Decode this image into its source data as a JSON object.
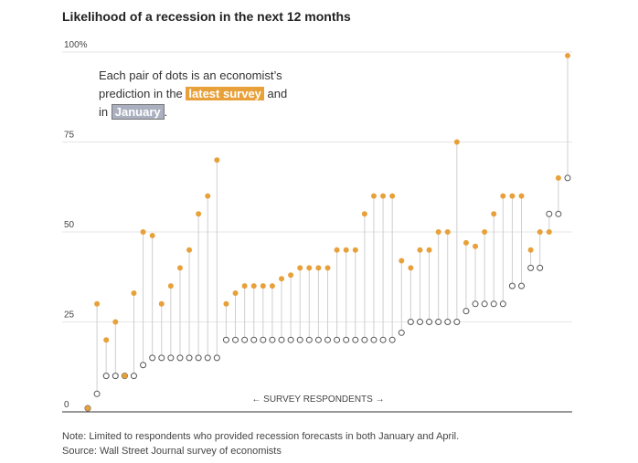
{
  "title": "Likelihood of a recession in the next 12 months",
  "annotation": {
    "line1": "Each pair of dots is an economist’s",
    "line2_prefix": "prediction in the",
    "latest_label": "latest survey",
    "line2_suffix": "and",
    "line3_prefix": "in",
    "january_label": "January",
    "line3_suffix": "."
  },
  "footer": {
    "note": "Note: Limited to respondents who provided recession forecasts in both January and April.",
    "source": "Source: Wall Street Journal survey of economists"
  },
  "colors": {
    "latest": "#e8a13a",
    "january": "#ffffff",
    "january_stroke": "#555555",
    "stem": "#cfcfcf",
    "grid": "#dddddd"
  },
  "chart_data": {
    "type": "scatter",
    "title": "Likelihood of a recession in the next 12 months",
    "xlabel": "← SURVEY RESPONDENTS →",
    "ylabel": "",
    "ylim": [
      0,
      100
    ],
    "y_ticks": [
      0,
      25,
      50,
      75,
      100
    ],
    "y_tick_labels": [
      "0",
      "25",
      "50",
      "75",
      "100%"
    ],
    "series": [
      {
        "name": "latest survey",
        "values": [
          1,
          30,
          20,
          25,
          10,
          33,
          50,
          49,
          30,
          35,
          40,
          45,
          55,
          60,
          70,
          30,
          33,
          35,
          35,
          35,
          35,
          37,
          38,
          40,
          40,
          40,
          40,
          45,
          45,
          45,
          55,
          60,
          60,
          60,
          42,
          40,
          45,
          45,
          50,
          50,
          75,
          47,
          46,
          50,
          55,
          60,
          60,
          60,
          45,
          50,
          50,
          65,
          99
        ]
      },
      {
        "name": "January",
        "values": [
          1,
          5,
          10,
          10,
          10,
          10,
          13,
          15,
          15,
          15,
          15,
          15,
          15,
          15,
          15,
          20,
          20,
          20,
          20,
          20,
          20,
          20,
          20,
          20,
          20,
          20,
          20,
          20,
          20,
          20,
          20,
          20,
          20,
          20,
          22,
          25,
          25,
          25,
          25,
          25,
          25,
          28,
          30,
          30,
          30,
          30,
          35,
          35,
          40,
          40,
          55,
          55,
          65
        ]
      }
    ]
  }
}
